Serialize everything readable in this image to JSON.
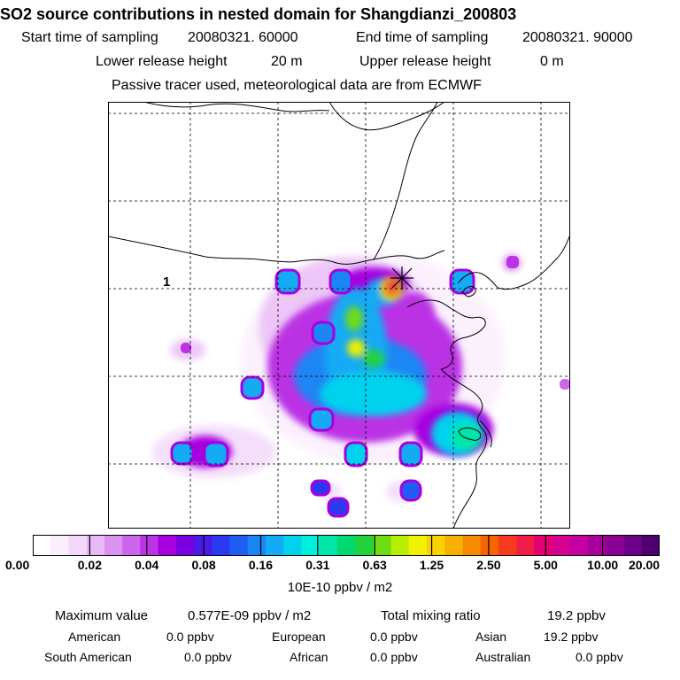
{
  "header": {
    "title": "SO2 source contributions in nested domain for Shangdianzi_200803",
    "start_label": "Start time of sampling",
    "start_value": "20080321. 60000",
    "end_label": "End time of sampling",
    "end_value": "20080321. 90000",
    "lower_label": "Lower release height",
    "lower_value": "20 m",
    "upper_label": "Upper release height",
    "upper_value": "0 m",
    "tracer_note": "Passive tracer used, meteorological data are from ECMWF"
  },
  "map": {
    "site_marker": "asterisk-icon",
    "site_label": "1"
  },
  "colorbar": {
    "colors": [
      "#ffffff",
      "#fbeefd",
      "#f3d7fb",
      "#e9b9f6",
      "#dc93f0",
      "#cc66ea",
      "#bb33e5",
      "#a700e0",
      "#7a00e0",
      "#4a1ae6",
      "#2b3af0",
      "#1f5ef2",
      "#1a86f4",
      "#14aaf4",
      "#00d2ee",
      "#00eedc",
      "#00e6a6",
      "#00d870",
      "#22d23e",
      "#6fdc16",
      "#b8ee00",
      "#f0f000",
      "#f8d200",
      "#f8b000",
      "#f88c00",
      "#f86400",
      "#f83a1e",
      "#f01e46",
      "#e4006e",
      "#d40090",
      "#c400a0",
      "#a8009c",
      "#8a0094",
      "#6c0088",
      "#4e0070"
    ],
    "labels": [
      "0.00",
      "0.02",
      "0.04",
      "0.08",
      "0.16",
      "0.31",
      "0.63",
      "1.25",
      "2.50",
      "5.00",
      "10.00",
      "20.00"
    ],
    "units": "10E-10 ppbv / m2"
  },
  "stats": {
    "max_label": "Maximum value",
    "max_value": "0.577E-09 ppbv / m2",
    "total_label": "Total mixing ratio",
    "total_value": "19.2 ppbv",
    "regions": [
      {
        "name": "American",
        "value": "0.0 ppbv"
      },
      {
        "name": "European",
        "value": "0.0 ppbv"
      },
      {
        "name": "Asian",
        "value": "19.2 ppbv"
      },
      {
        "name": "South American",
        "value": "0.0 ppbv"
      },
      {
        "name": "African",
        "value": "0.0 ppbv"
      },
      {
        "name": "Australian",
        "value": "0.0 ppbv"
      }
    ]
  }
}
